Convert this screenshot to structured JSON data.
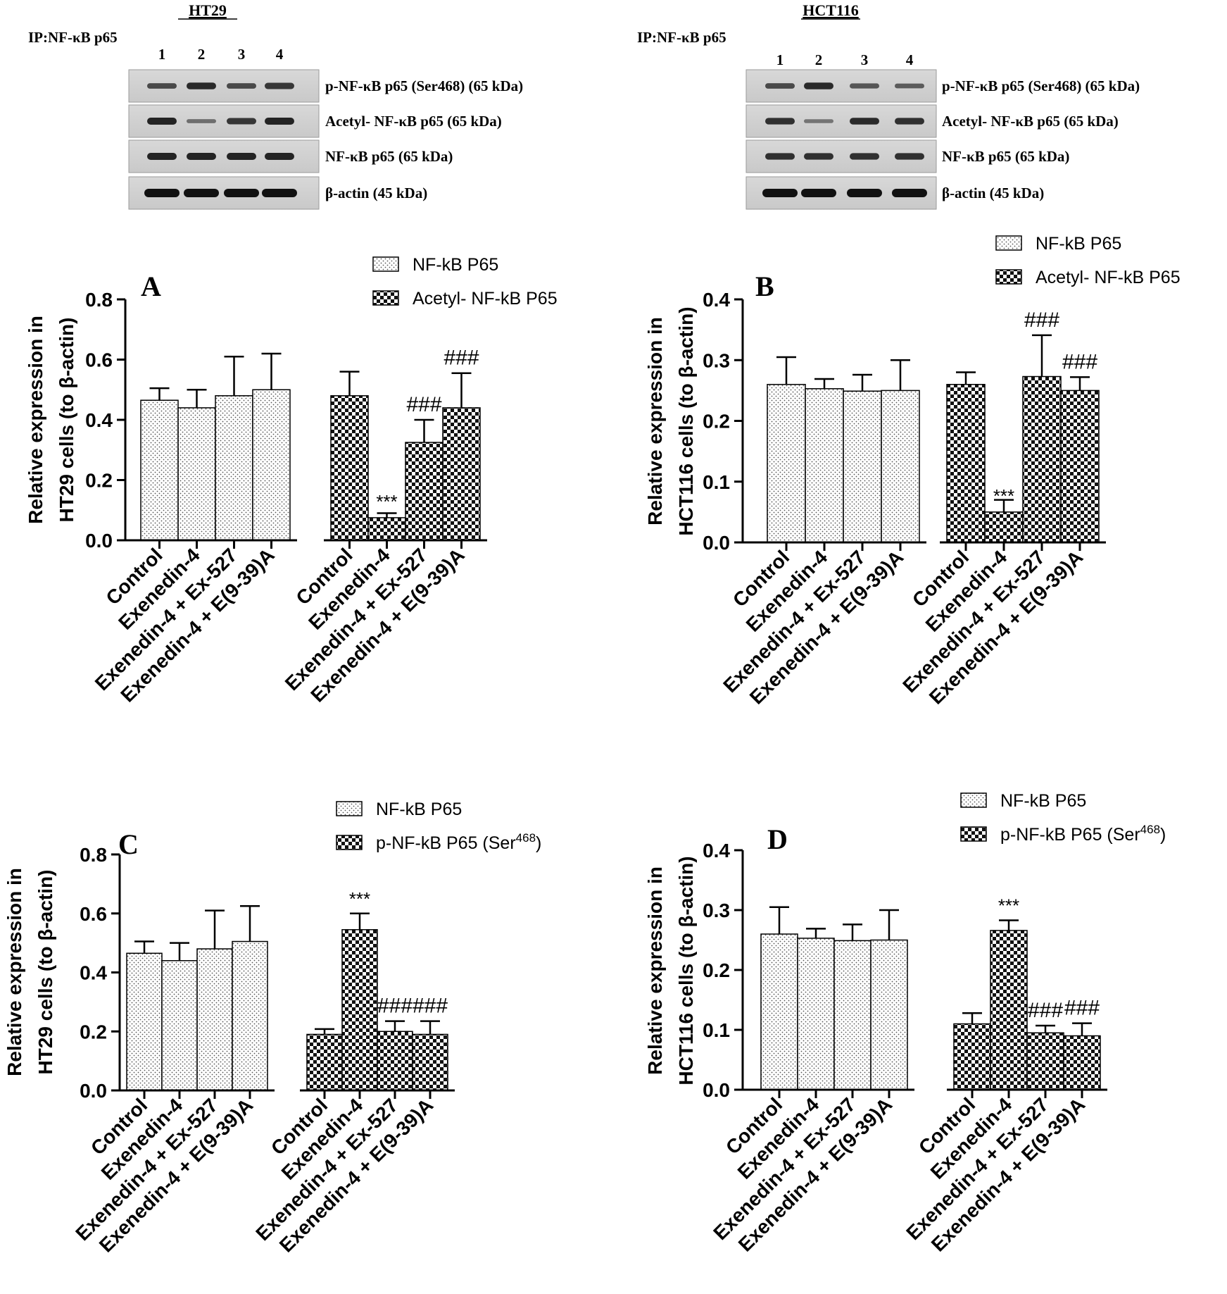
{
  "blots": [
    {
      "title": "HT29",
      "ip_label": "IP:NF-κB p65",
      "lanes": [
        "1",
        "2",
        "3",
        "4"
      ],
      "bands": [
        {
          "label": "p-NF-κB p65 (Ser468) (65 kDa)",
          "intensities": [
            0.55,
            0.8,
            0.55,
            0.7
          ]
        },
        {
          "label": "Acetyl- NF-κB p65 (65 kDa)",
          "intensities": [
            0.85,
            0.25,
            0.7,
            0.85
          ]
        },
        {
          "label": "NF-κB p65 (65 kDa)",
          "intensities": [
            0.85,
            0.85,
            0.85,
            0.85
          ]
        },
        {
          "label": "β-actin (45 kDa)",
          "intensities": [
            1,
            1,
            1,
            1
          ]
        }
      ]
    },
    {
      "title": "HCT116",
      "ip_label": "IP:NF-κB p65",
      "lanes": [
        "1",
        "2",
        "3",
        "4"
      ],
      "bands": [
        {
          "label": "p-NF-κB p65 (Ser468) (65 kDa)",
          "intensities": [
            0.55,
            0.8,
            0.45,
            0.4
          ]
        },
        {
          "label": "Acetyl- NF-κB p65 (65 kDa)",
          "intensities": [
            0.75,
            0.2,
            0.8,
            0.75
          ]
        },
        {
          "label": "NF-κB p65 (65 kDa)",
          "intensities": [
            0.75,
            0.75,
            0.75,
            0.75
          ]
        },
        {
          "label": "β-actin (45 kDa)",
          "intensities": [
            1,
            1,
            1,
            1
          ]
        }
      ]
    }
  ],
  "chart_data": [
    {
      "panel": "A",
      "type": "bar",
      "ylabel_lines": [
        "Relative expression in",
        "HT29 cells (to β-actin)"
      ],
      "ylim": [
        0,
        0.8
      ],
      "yticks": [
        "0.0",
        "0.2",
        "0.4",
        "0.6",
        "0.8"
      ],
      "ytick_values": [
        0,
        0.2,
        0.4,
        0.6,
        0.8
      ],
      "categories": [
        "Control",
        "Exenedin-4",
        "Exenedin-4 + Ex-527",
        "Exenedin-4 + E(9-39)A"
      ],
      "series": [
        {
          "name": "NF-kB P65",
          "pattern": "dots",
          "values": [
            0.465,
            0.44,
            0.48,
            0.5
          ],
          "errors": [
            0.04,
            0.06,
            0.13,
            0.12
          ],
          "annotations": [
            "",
            "",
            "",
            ""
          ]
        },
        {
          "name": "Acetyl- NF-kB P65",
          "pattern": "check",
          "values": [
            0.48,
            0.075,
            0.325,
            0.44
          ],
          "errors": [
            0.08,
            0.015,
            0.075,
            0.115
          ],
          "annotations": [
            "",
            "***",
            "###",
            "###"
          ]
        }
      ]
    },
    {
      "panel": "B",
      "type": "bar",
      "ylabel_lines": [
        "Relative expression in",
        "HCT116 cells (to β-actin)"
      ],
      "ylim": [
        0,
        0.4
      ],
      "yticks": [
        "0.0",
        "0.1",
        "0.2",
        "0.3",
        "0.4"
      ],
      "ytick_values": [
        0,
        0.1,
        0.2,
        0.3,
        0.4
      ],
      "categories": [
        "Control",
        "Exenedin-4",
        "Exenedin-4 + Ex-527",
        "Exenedin-4 + E(9-39)A"
      ],
      "series": [
        {
          "name": "NF-kB P65",
          "pattern": "dots",
          "values": [
            0.26,
            0.253,
            0.249,
            0.25
          ],
          "errors": [
            0.045,
            0.016,
            0.027,
            0.05
          ],
          "annotations": [
            "",
            "",
            "",
            ""
          ]
        },
        {
          "name": "Acetyl- NF-kB P65",
          "pattern": "check",
          "values": [
            0.26,
            0.05,
            0.273,
            0.25
          ],
          "errors": [
            0.02,
            0.02,
            0.068,
            0.022
          ],
          "annotations": [
            "",
            "***",
            "###",
            "###"
          ]
        }
      ]
    },
    {
      "panel": "C",
      "type": "bar",
      "ylabel_lines": [
        "Relative expression in",
        "HT29 cells (to β-actin)"
      ],
      "ylim": [
        0,
        0.8
      ],
      "yticks": [
        "0.0",
        "0.2",
        "0.4",
        "0.6",
        "0.8"
      ],
      "ytick_values": [
        0,
        0.2,
        0.4,
        0.6,
        0.8
      ],
      "categories": [
        "Control",
        "Exenedin-4",
        "Exenedin-4 + Ex-527",
        "Exenedin-4 + E(9-39)A"
      ],
      "series": [
        {
          "name": "NF-kB P65",
          "pattern": "dots",
          "values": [
            0.465,
            0.44,
            0.48,
            0.505
          ],
          "errors": [
            0.04,
            0.06,
            0.13,
            0.12
          ],
          "annotations": [
            "",
            "",
            "",
            ""
          ]
        },
        {
          "name": "p-NF-kB P65 (Ser",
          "superscript": "468",
          "name_suffix": ")",
          "pattern": "check",
          "values": [
            0.19,
            0.545,
            0.2,
            0.19
          ],
          "errors": [
            0.018,
            0.055,
            0.035,
            0.045
          ],
          "annotations": [
            "",
            "***",
            "###",
            "###"
          ]
        }
      ]
    },
    {
      "panel": "D",
      "type": "bar",
      "ylabel_lines": [
        "Relative expression in",
        "HCT116 cells (to β-actin)"
      ],
      "ylim": [
        0,
        0.4
      ],
      "yticks": [
        "0.0",
        "0.1",
        "0.2",
        "0.3",
        "0.4"
      ],
      "ytick_values": [
        0,
        0.1,
        0.2,
        0.3,
        0.4
      ],
      "categories": [
        "Control",
        "Exenedin-4",
        "Exenedin-4 + Ex-527",
        "Exenedin-4 + E(9-39)A"
      ],
      "series": [
        {
          "name": "NF-kB P65",
          "pattern": "dots",
          "values": [
            0.26,
            0.253,
            0.249,
            0.25
          ],
          "errors": [
            0.045,
            0.016,
            0.027,
            0.05
          ],
          "annotations": [
            "",
            "",
            "",
            ""
          ]
        },
        {
          "name": "p-NF-kB P65 (Ser",
          "superscript": "468",
          "name_suffix": ")",
          "pattern": "check",
          "values": [
            0.11,
            0.266,
            0.095,
            0.09
          ],
          "errors": [
            0.018,
            0.017,
            0.012,
            0.021
          ],
          "annotations": [
            "",
            "***",
            "###",
            "###"
          ]
        }
      ]
    }
  ]
}
